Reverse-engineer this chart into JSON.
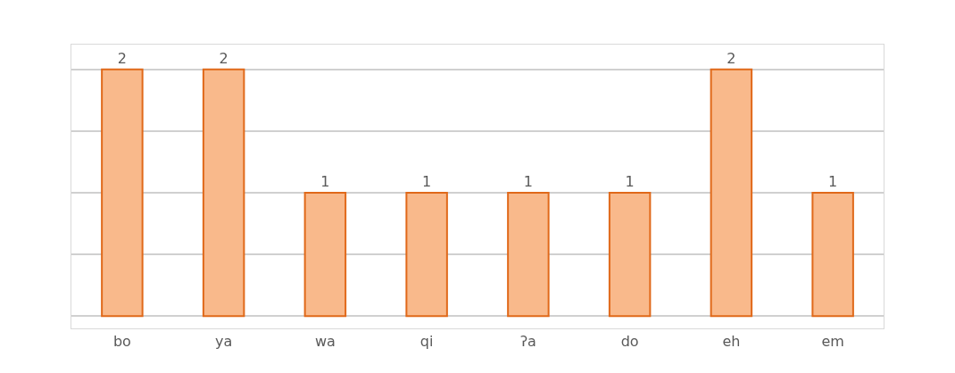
{
  "chart_data": {
    "type": "bar",
    "categories": [
      "bo",
      "ya",
      "wa",
      "qi",
      "ʔa",
      "do",
      "eh",
      "em"
    ],
    "values": [
      2,
      2,
      1,
      1,
      1,
      1,
      2,
      1
    ],
    "color": "#f9b98b",
    "ylim": [
      -0.1,
      2.2
    ],
    "yticks": [
      {
        "value": 0,
        "label": null
      },
      {
        "value": 0.5,
        "label": null
      },
      {
        "value": 1,
        "label": null
      },
      {
        "value": 1.5,
        "label": null
      },
      {
        "value": 2,
        "label": null
      }
    ],
    "tick_labels": "x",
    "grid": "y",
    "data_labels": true
  }
}
